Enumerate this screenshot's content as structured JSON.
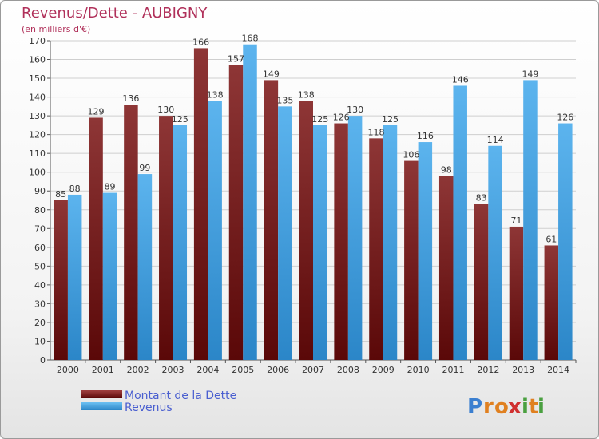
{
  "chart_data": {
    "type": "bar",
    "title": "Revenus/Dette - AUBIGNY",
    "subtitle": "(en milliers d'€)",
    "categories": [
      "2000",
      "2001",
      "2002",
      "2003",
      "2004",
      "2005",
      "2006",
      "2007",
      "2008",
      "2009",
      "2010",
      "2011",
      "2012",
      "2013",
      "2014"
    ],
    "series": [
      {
        "name": "Montant de la Dette",
        "color": "#8b2a2a",
        "values": [
          85,
          129,
          136,
          130,
          166,
          157,
          149,
          138,
          126,
          118,
          106,
          98,
          83,
          71,
          61
        ]
      },
      {
        "name": "Revenus",
        "color": "#4aa3e0",
        "values": [
          88,
          89,
          99,
          125,
          138,
          168,
          135,
          125,
          130,
          125,
          116,
          146,
          114,
          149,
          126
        ]
      }
    ],
    "ylim": [
      0,
      170
    ],
    "ytick_step": 10,
    "grid": true,
    "legend": "bottom-left"
  },
  "logo": {
    "letters": [
      "P",
      "r",
      "o",
      "x",
      "i",
      "t",
      "i"
    ],
    "colors": [
      "#3b7fd0",
      "#e08020",
      "#e08020",
      "#d03030",
      "#4aa040",
      "#e08020",
      "#4aa040"
    ]
  }
}
